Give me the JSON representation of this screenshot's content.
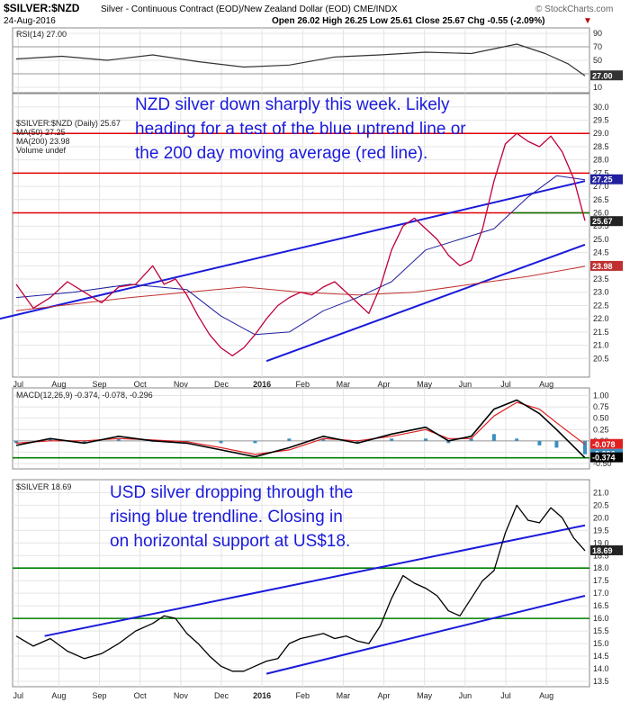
{
  "header": {
    "symbol": "$SILVER:$NZD",
    "description": "Silver - Continuous Contract (EOD)/New Zealand Dollar (EOD) CME/INDX",
    "date": "24-Aug-2016",
    "ohlc": "Open 26.02  High 26.25  Low 25.61  Close 25.67  Chg -0.55 (-2.09%)",
    "down_marker": "▼",
    "brand": "© StockCharts.com"
  },
  "x_labels": [
    "Jul",
    "Aug",
    "Sep",
    "Oct",
    "Nov",
    "Dec",
    "2016",
    "Feb",
    "Mar",
    "Apr",
    "May",
    "Jun",
    "Jul",
    "Aug"
  ],
  "colors": {
    "price": "#c0003a",
    "ma50": "#2020a0",
    "ma200": "#c03030",
    "trendline": "#1a1adc",
    "support_red": "#e00000",
    "support_green": "#008000",
    "rsi": "#333333",
    "macd": "#000000",
    "signal": "#e02020",
    "histogram": "#3a8fbf",
    "annotation": "#1a1adc"
  },
  "annotations": {
    "nzd": [
      "NZD silver down sharply this week. Likely",
      "heading for a test of the blue uptrend line or",
      "the 200 day moving average (red line)."
    ],
    "usd": [
      "USD silver dropping through the",
      "rising blue trendline. Closing in",
      "on horizontal support at US$18."
    ]
  },
  "chart_data": [
    {
      "type": "line",
      "panel": "rsi",
      "legend": "RSI(14) 27.00",
      "y_ticks": [
        "90",
        "70",
        "50",
        "30",
        "10"
      ],
      "ylim": [
        10,
        90
      ],
      "last_value_label": "27.00",
      "x": [
        0,
        0.08,
        0.16,
        0.24,
        0.32,
        0.4,
        0.48,
        0.56,
        0.64,
        0.72,
        0.8,
        0.88,
        0.93,
        0.97,
        1.0
      ],
      "values": [
        52,
        56,
        50,
        58,
        48,
        40,
        43,
        55,
        58,
        62,
        60,
        74,
        60,
        45,
        27
      ]
    },
    {
      "type": "line",
      "panel": "nzd_price",
      "legend": [
        "$SILVER:$NZD (Daily) 25.67",
        "MA(50) 27.25",
        "MA(200) 23.98",
        "Volume undef"
      ],
      "y_ticks": [
        "30.0",
        "29.5",
        "29.0",
        "28.5",
        "28.0",
        "27.5",
        "27.0",
        "26.5",
        "26.0",
        "25.5",
        "25.0",
        "24.5",
        "24.0",
        "23.5",
        "23.0",
        "22.5",
        "22.0",
        "21.5",
        "21.0",
        "20.5"
      ],
      "ylim": [
        20.0,
        30.3
      ],
      "last_value_labels": [
        "27.25",
        "25.67",
        "23.98"
      ],
      "series": [
        {
          "name": "$SILVER:$NZD",
          "x": [
            0,
            0.03,
            0.06,
            0.09,
            0.12,
            0.15,
            0.18,
            0.21,
            0.24,
            0.26,
            0.28,
            0.3,
            0.32,
            0.34,
            0.36,
            0.38,
            0.4,
            0.42,
            0.44,
            0.46,
            0.48,
            0.5,
            0.52,
            0.54,
            0.56,
            0.58,
            0.6,
            0.62,
            0.64,
            0.66,
            0.68,
            0.7,
            0.72,
            0.74,
            0.76,
            0.78,
            0.8,
            0.82,
            0.84,
            0.86,
            0.88,
            0.9,
            0.92,
            0.94,
            0.96,
            0.98,
            1.0
          ],
          "values": [
            23.3,
            22.4,
            22.8,
            23.4,
            23.0,
            22.6,
            23.2,
            23.3,
            24.0,
            23.3,
            23.5,
            22.9,
            22.1,
            21.4,
            20.9,
            20.6,
            20.9,
            21.4,
            22.0,
            22.5,
            22.8,
            23.0,
            22.9,
            23.2,
            23.4,
            23.0,
            22.6,
            22.2,
            23.2,
            24.6,
            25.5,
            25.8,
            25.4,
            25.0,
            24.4,
            24.0,
            24.2,
            25.4,
            27.2,
            28.6,
            29.0,
            28.7,
            28.5,
            28.9,
            28.3,
            27.3,
            25.7
          ]
        },
        {
          "name": "MA(50)",
          "x": [
            0,
            0.1,
            0.2,
            0.3,
            0.36,
            0.42,
            0.48,
            0.54,
            0.6,
            0.66,
            0.72,
            0.78,
            0.84,
            0.9,
            0.95,
            1.0
          ],
          "values": [
            22.8,
            23.0,
            23.3,
            23.1,
            22.1,
            21.4,
            21.5,
            22.3,
            22.8,
            23.4,
            24.6,
            25.0,
            25.4,
            26.6,
            27.4,
            27.25
          ]
        },
        {
          "name": "MA(200)",
          "x": [
            0,
            0.2,
            0.4,
            0.5,
            0.6,
            0.7,
            0.8,
            0.9,
            1.0
          ],
          "values": [
            22.3,
            22.8,
            23.2,
            23.0,
            22.9,
            23.0,
            23.3,
            23.6,
            23.98
          ]
        }
      ],
      "horizontal_lines": [
        {
          "color": "red",
          "value": 29.0
        },
        {
          "color": "red",
          "value": 27.5
        },
        {
          "color": "red",
          "value": 26.0
        }
      ],
      "trendlines": [
        {
          "from": [
            0.0,
            22.0
          ],
          "to": [
            1.0,
            27.2
          ]
        },
        {
          "from": [
            0.44,
            20.4
          ],
          "to": [
            1.0,
            24.8
          ]
        }
      ]
    },
    {
      "type": "line",
      "panel": "macd",
      "legend": "MACD(12,26,9) -0.374, -0.078, -0.296",
      "y_ticks": [
        "1.00",
        "0.75",
        "0.50",
        "0.25",
        "0.00",
        "-0.25",
        "-0.50"
      ],
      "ylim": [
        -0.5,
        1.05
      ],
      "last_value_labels": [
        "-0.078",
        "-0.296",
        "-0.374"
      ],
      "x": [
        0,
        0.06,
        0.12,
        0.18,
        0.24,
        0.3,
        0.36,
        0.42,
        0.48,
        0.54,
        0.6,
        0.66,
        0.72,
        0.76,
        0.8,
        0.84,
        0.88,
        0.92,
        0.95,
        1.0
      ],
      "series": [
        {
          "name": "MACD",
          "values": [
            -0.1,
            0.05,
            -0.05,
            0.1,
            0.0,
            -0.05,
            -0.2,
            -0.35,
            -0.15,
            0.1,
            -0.05,
            0.15,
            0.3,
            0.0,
            0.1,
            0.7,
            0.9,
            0.6,
            0.25,
            -0.374
          ]
        },
        {
          "name": "Signal",
          "values": [
            -0.05,
            0.0,
            0.0,
            0.05,
            0.02,
            -0.02,
            -0.15,
            -0.3,
            -0.2,
            0.05,
            0.0,
            0.1,
            0.25,
            0.05,
            0.05,
            0.55,
            0.85,
            0.7,
            0.4,
            -0.078
          ]
        }
      ]
    },
    {
      "type": "line",
      "panel": "usd_price",
      "legend": "$SILVER 18.69",
      "y_ticks": [
        "21.0",
        "20.5",
        "20.0",
        "19.5",
        "19.0",
        "18.5",
        "18.0",
        "17.5",
        "17.0",
        "16.5",
        "16.0",
        "15.5",
        "15.0",
        "14.5",
        "14.0",
        "13.5"
      ],
      "ylim": [
        13.5,
        21.3
      ],
      "last_value_label": "18.69",
      "x": [
        0,
        0.03,
        0.06,
        0.09,
        0.12,
        0.15,
        0.18,
        0.21,
        0.24,
        0.26,
        0.28,
        0.3,
        0.32,
        0.34,
        0.36,
        0.38,
        0.4,
        0.42,
        0.44,
        0.46,
        0.48,
        0.5,
        0.52,
        0.54,
        0.56,
        0.58,
        0.6,
        0.62,
        0.64,
        0.66,
        0.68,
        0.7,
        0.72,
        0.74,
        0.76,
        0.78,
        0.8,
        0.82,
        0.84,
        0.86,
        0.88,
        0.9,
        0.92,
        0.94,
        0.96,
        0.98,
        1.0
      ],
      "values": [
        15.3,
        14.9,
        15.2,
        14.7,
        14.4,
        14.6,
        15.0,
        15.5,
        15.8,
        16.1,
        16.0,
        15.4,
        15.0,
        14.5,
        14.1,
        13.9,
        13.9,
        14.1,
        14.3,
        14.4,
        15.0,
        15.2,
        15.3,
        15.4,
        15.2,
        15.3,
        15.1,
        15.0,
        15.7,
        16.8,
        17.7,
        17.4,
        17.2,
        16.9,
        16.3,
        16.1,
        16.8,
        17.5,
        17.9,
        19.4,
        20.5,
        19.9,
        19.8,
        20.4,
        20.0,
        19.2,
        18.69
      ]
    }
  ]
}
